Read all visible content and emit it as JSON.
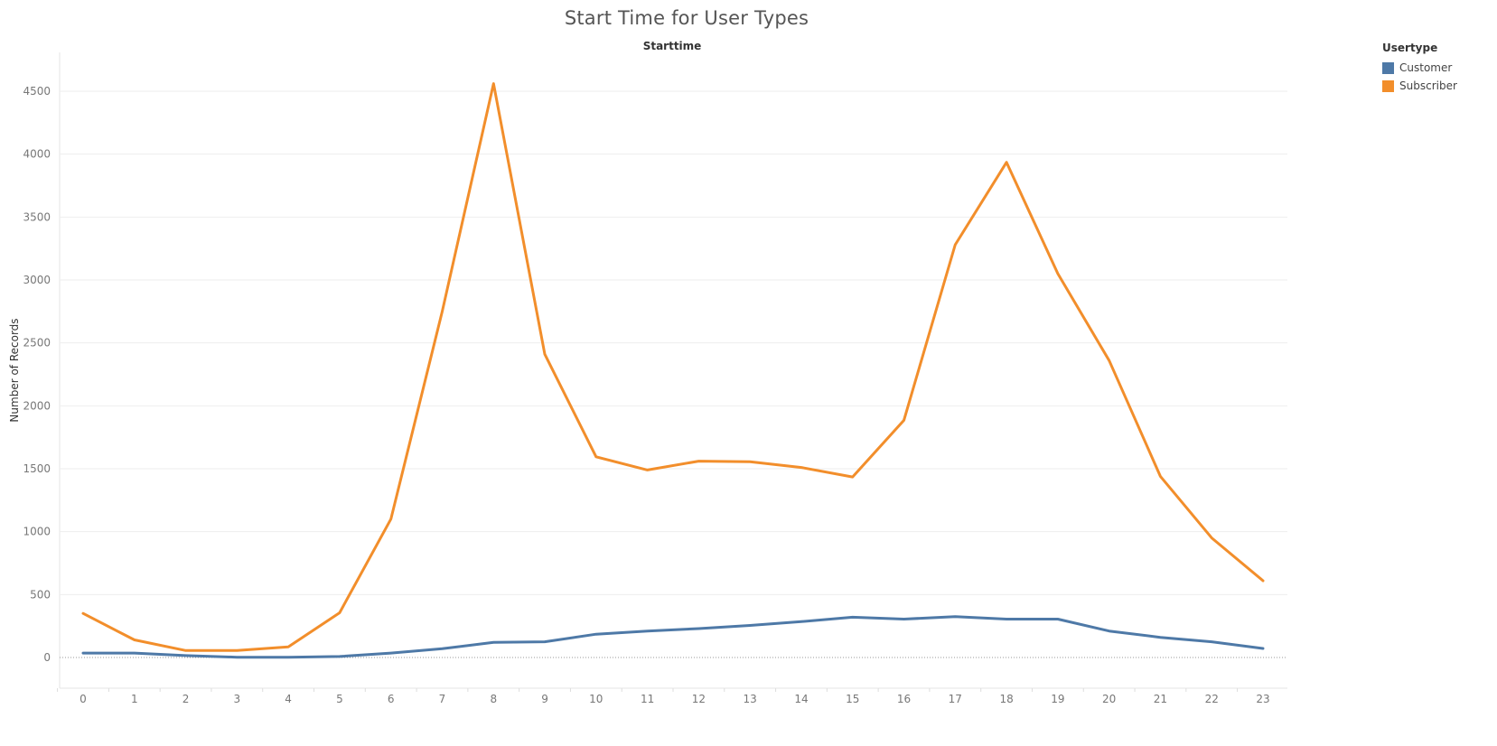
{
  "chart_data": {
    "type": "line",
    "title": "Start Time for User Types",
    "column_header": "Starttime",
    "xlabel": "",
    "ylabel": "Number of Records",
    "x": [
      0,
      1,
      2,
      3,
      4,
      5,
      6,
      7,
      8,
      9,
      10,
      11,
      12,
      13,
      14,
      15,
      16,
      17,
      18,
      19,
      20,
      21,
      22,
      23
    ],
    "ylim": [
      0,
      4700
    ],
    "yticks": [
      0,
      500,
      1000,
      1500,
      2000,
      2500,
      3000,
      3500,
      4000,
      4500
    ],
    "grid": true,
    "legend": {
      "title": "Usertype",
      "placement": "top-right"
    },
    "series": [
      {
        "name": "Customer",
        "color": "#4e79a7",
        "values": [
          35,
          35,
          15,
          2,
          2,
          8,
          35,
          70,
          120,
          125,
          185,
          210,
          230,
          255,
          285,
          320,
          305,
          325,
          305,
          305,
          210,
          160,
          125,
          72
        ]
      },
      {
        "name": "Subscriber",
        "color": "#f28e2b",
        "values": [
          350,
          140,
          55,
          55,
          85,
          355,
          1100,
          2750,
          4560,
          2410,
          1595,
          1490,
          1560,
          1555,
          1510,
          1435,
          1885,
          3280,
          3935,
          3050,
          2360,
          1440,
          950,
          610
        ]
      }
    ]
  }
}
